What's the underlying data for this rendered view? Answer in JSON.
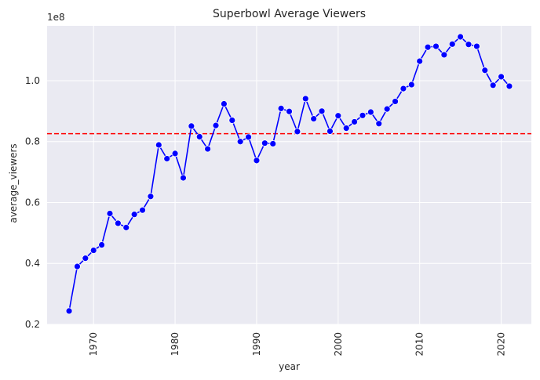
{
  "chart_data": {
    "type": "line",
    "title": "Superbowl Average Viewers",
    "xlabel": "year",
    "ylabel": "average_viewers",
    "y_offset_label": "1e8",
    "xlim": [
      1964.3,
      2023.7
    ],
    "ylim": [
      0.2,
      1.18
    ],
    "x_ticks": [
      1970,
      1980,
      1990,
      2000,
      2010,
      2020
    ],
    "y_ticks": [
      0.2,
      0.4,
      0.6,
      0.8,
      1.0
    ],
    "y_tick_labels": [
      "0.2",
      "0.4",
      "0.6",
      "0.8",
      "1.0"
    ],
    "grid": true,
    "mean_line": 0.826,
    "series": [
      {
        "x": [
          1967,
          1968,
          1969,
          1970,
          1971,
          1972,
          1973,
          1974,
          1975,
          1976,
          1977,
          1978,
          1979,
          1980,
          1981,
          1982,
          1983,
          1984,
          1985,
          1986,
          1987,
          1988,
          1989,
          1990,
          1991,
          1992,
          1993,
          1994,
          1995,
          1996,
          1997,
          1998,
          1999,
          2000,
          2001,
          2002,
          2003,
          2004,
          2005,
          2006,
          2007,
          2008,
          2009,
          2010,
          2011,
          2012,
          2013,
          2014,
          2015,
          2016,
          2017,
          2018,
          2019,
          2020,
          2021
        ],
        "values": [
          0.244,
          0.39,
          0.417,
          0.443,
          0.461,
          0.564,
          0.532,
          0.518,
          0.561,
          0.575,
          0.62,
          0.789,
          0.744,
          0.761,
          0.681,
          0.851,
          0.816,
          0.776,
          0.853,
          0.924,
          0.87,
          0.8,
          0.815,
          0.738,
          0.795,
          0.793,
          0.909,
          0.899,
          0.833,
          0.941,
          0.875,
          0.9,
          0.834,
          0.885,
          0.844,
          0.865,
          0.886,
          0.897,
          0.859,
          0.907,
          0.932,
          0.974,
          0.987,
          1.064,
          1.11,
          1.113,
          1.085,
          1.12,
          1.144,
          1.119,
          1.113,
          1.034,
          0.985,
          1.013,
          0.982
        ]
      }
    ],
    "colors": {
      "line": "#0000ff",
      "marker": "#0000ff",
      "mean_line": "#ff0000",
      "plot_bg": "#eaeaf2",
      "grid": "#ffffff",
      "text": "#262626"
    }
  }
}
